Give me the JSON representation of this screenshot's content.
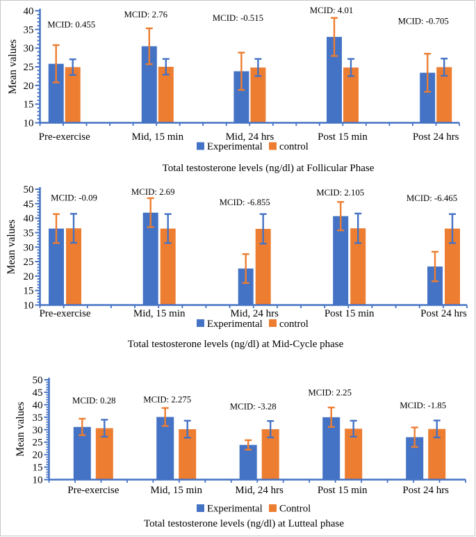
{
  "figure": {
    "background": "#ffffff",
    "border_color": "#c6c6c6"
  },
  "chart_data": [
    {
      "type": "bar",
      "title": "Total testosterone levels (ng/dl) at Follicular Phase",
      "ylabel": "Mean values",
      "ylim": [
        10,
        40
      ],
      "ytick_step": 5,
      "grid": false,
      "legend_position": "bottom",
      "axis_color": "#4472C4",
      "categories": [
        "Pre-exercise",
        "Mid, 15 min",
        "Mid, 24 hrs",
        "Post 15 min",
        "Post 24 hrs"
      ],
      "series": [
        {
          "name": "Experimental",
          "color": "#4472C4",
          "error_color": "#ED7D31",
          "values": [
            25.8,
            30.5,
            23.8,
            33.0,
            23.4
          ],
          "errors": [
            5.0,
            4.8,
            5.0,
            5.1,
            5.1
          ]
        },
        {
          "name": "control",
          "color": "#ED7D31",
          "error_color": "#4472C4",
          "values": [
            24.9,
            25.0,
            24.8,
            24.8,
            24.9
          ],
          "errors": [
            2.1,
            2.1,
            2.3,
            2.3,
            2.3
          ]
        }
      ],
      "annotations": [
        {
          "label": "MCID: 0.455",
          "y": 36.3
        },
        {
          "label": "MCID: 2.76",
          "y": 39.0
        },
        {
          "label": "MCID: -0.515",
          "y": 38.0
        },
        {
          "label": "MCID: 4.01",
          "y": 40.1
        },
        {
          "label": "MCID: -0.705",
          "y": 37.2
        }
      ]
    },
    {
      "type": "bar",
      "title": "Total testosterone levels (ng/dl) at Mid-Cycle phase",
      "ylabel": "Mean values",
      "ylim": [
        10,
        50
      ],
      "ytick_step": 5,
      "grid": false,
      "legend_position": "bottom",
      "axis_color": "#4472C4",
      "categories": [
        "Pre-exercise",
        "Mid, 15 min",
        "Mid, 24 hrs",
        "Post 15 min",
        "Post 24 hrs"
      ],
      "series": [
        {
          "name": "Experimental",
          "color": "#4472C4",
          "error_color": "#ED7D31",
          "values": [
            36.4,
            41.9,
            22.6,
            40.7,
            23.3
          ],
          "errors": [
            5.0,
            5.0,
            5.0,
            4.9,
            5.1
          ]
        },
        {
          "name": "control",
          "color": "#ED7D31",
          "error_color": "#4472C4",
          "values": [
            36.5,
            36.4,
            36.3,
            36.5,
            36.4
          ],
          "errors": [
            5.0,
            5.0,
            5.1,
            5.1,
            5.0
          ]
        }
      ],
      "annotations": [
        {
          "label": "MCID: -0.09",
          "y": 47.0
        },
        {
          "label": "MCID: 2.69",
          "y": 49.0
        },
        {
          "label": "MCID: -6.855",
          "y": 45.4
        },
        {
          "label": "MCID: 2.105",
          "y": 48.8
        },
        {
          "label": "MCID: -6.465",
          "y": 46.9
        }
      ]
    },
    {
      "type": "bar",
      "title": "Total testosterone levels (ng/dl) at Lutteal phase",
      "ylabel": "Mean values",
      "ylim": [
        10,
        50
      ],
      "ytick_step": 5,
      "grid": false,
      "legend_position": "bottom",
      "axis_color": "#4472C4",
      "categories": [
        "Pre-exercise",
        "Mid, 15 min",
        "Mid, 24 hrs",
        "Post 15 min",
        "Post 24 hrs"
      ],
      "series": [
        {
          "name": "Experimental",
          "color": "#4472C4",
          "error_color": "#ED7D31",
          "values": [
            31.1,
            35.1,
            23.9,
            35.0,
            27.0
          ],
          "errors": [
            3.3,
            3.6,
            1.9,
            3.9,
            3.9
          ]
        },
        {
          "name": "Control",
          "color": "#ED7D31",
          "error_color": "#4472C4",
          "values": [
            30.6,
            30.2,
            30.2,
            30.4,
            30.3
          ],
          "errors": [
            3.4,
            3.4,
            3.3,
            3.2,
            3.4
          ]
        }
      ],
      "annotations": [
        {
          "label": "MCID: 0.28",
          "y": 41.6
        },
        {
          "label": "MCID: 2.275",
          "y": 42.1
        },
        {
          "label": "MCID: -3.28",
          "y": 39.3
        },
        {
          "label": "MCID: 2.25",
          "y": 44.9
        },
        {
          "label": "MCID: -1.85",
          "y": 39.7
        }
      ]
    }
  ]
}
